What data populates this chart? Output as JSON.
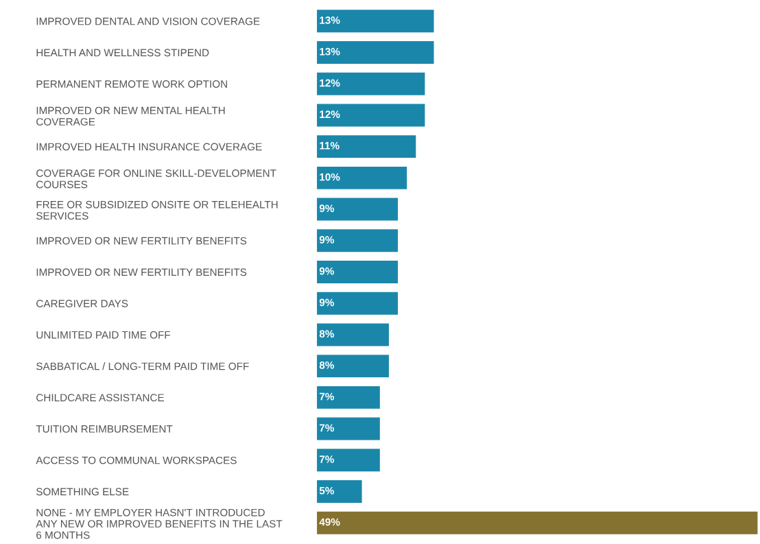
{
  "chart_data": {
    "type": "bar",
    "orientation": "horizontal",
    "tick_labels": "y",
    "grid": false,
    "legend": false,
    "categories": [
      "IMPROVED DENTAL AND VISION COVERAGE",
      "HEALTH AND WELLNESS STIPEND",
      "PERMANENT REMOTE WORK OPTION",
      "IMPROVED OR NEW MENTAL HEALTH\nCOVERAGE",
      "IMPROVED HEALTH INSURANCE COVERAGE",
      "COVERAGE FOR ONLINE SKILL-DEVELOPMENT\nCOURSES",
      "FREE OR SUBSIDIZED ONSITE OR TELEHEALTH\nSERVICES",
      "IMPROVED OR NEW FERTILITY BENEFITS",
      "IMPROVED OR NEW FERTILITY BENEFITS",
      "CAREGIVER DAYS",
      "UNLIMITED PAID TIME OFF",
      "SABBATICAL / LONG-TERM PAID TIME OFF",
      "CHILDCARE ASSISTANCE",
      "TUITION REIMBURSEMENT",
      "ACCESS TO COMMUNAL WORKSPACES",
      "SOMETHING ELSE",
      "NONE - MY EMPLOYER HASN'T INTRODUCED\nANY NEW OR IMPROVED BENEFITS IN THE LAST\n6 MONTHS"
    ],
    "values": [
      13,
      13,
      12,
      12,
      11,
      10,
      9,
      9,
      9,
      9,
      8,
      8,
      7,
      7,
      7,
      5,
      49
    ],
    "value_labels": [
      "13%",
      "13%",
      "12%",
      "12%",
      "11%",
      "10%",
      "9%",
      "9%",
      "9%",
      "9%",
      "8%",
      "8%",
      "7%",
      "7%",
      "7%",
      "5%",
      "49%"
    ],
    "colors": [
      "#1a87aa",
      "#1a87aa",
      "#1a87aa",
      "#1a87aa",
      "#1a87aa",
      "#1a87aa",
      "#1a87aa",
      "#1a87aa",
      "#1a87aa",
      "#1a87aa",
      "#1a87aa",
      "#1a87aa",
      "#1a87aa",
      "#1a87aa",
      "#1a87aa",
      "#1a87aa",
      "#857231"
    ]
  }
}
